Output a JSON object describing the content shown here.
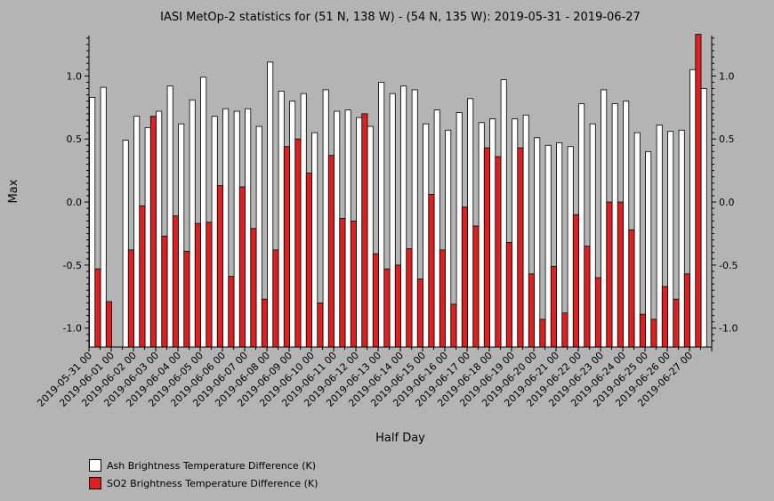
{
  "chart_data": {
    "type": "bar",
    "title": "IASI MetOp-2 statistics for (51 N, 138 W) - (54 N, 135 W): 2019-05-31 - 2019-06-27",
    "xlabel": "Half Day",
    "ylabel": "Max",
    "ylim": [
      -1.15,
      1.32
    ],
    "yticks": [
      -1.0,
      -0.5,
      0.0,
      0.5,
      1.0
    ],
    "ytick_labels": [
      "-1.0",
      "-0.5",
      "0.0",
      "0.5",
      "1.0"
    ],
    "legend_position": "bottom-left",
    "grid": false,
    "xtick_labels": [
      "2019-05-31 00",
      "2019-06-01 00",
      "2019-06-02 00",
      "2019-06-03 00",
      "2019-06-04 00",
      "2019-06-05 00",
      "2019-06-06 00",
      "2019-06-07 00",
      "2019-06-08 00",
      "2019-06-09 00",
      "2019-06-10 00",
      "2019-06-11 00",
      "2019-06-12 00",
      "2019-06-13 00",
      "2019-06-14 00",
      "2019-06-15 00",
      "2019-06-16 00",
      "2019-06-17 00",
      "2019-06-18 00",
      "2019-06-19 00",
      "2019-06-20 00",
      "2019-06-21 00",
      "2019-06-22 00",
      "2019-06-23 00",
      "2019-06-24 00",
      "2019-06-25 00",
      "2019-06-26 00",
      "2019-06-27 00"
    ],
    "series": [
      {
        "name": "Ash Brightness Temperature Difference (K)",
        "color": "#ffffff",
        "values": [
          0.83,
          0.91,
          null,
          0.49,
          0.68,
          0.59,
          0.72,
          0.92,
          0.62,
          0.81,
          0.99,
          0.68,
          0.74,
          0.72,
          0.74,
          0.6,
          1.11,
          0.88,
          0.8,
          0.86,
          0.55,
          0.89,
          0.72,
          0.73,
          0.67,
          0.6,
          0.95,
          0.86,
          0.92,
          0.89,
          0.62,
          0.73,
          0.57,
          0.71,
          0.82,
          0.63,
          0.66,
          0.97,
          0.66,
          0.69,
          0.51,
          0.45,
          0.47,
          0.44,
          0.78,
          0.62,
          0.89,
          0.78,
          0.8,
          0.55,
          0.4,
          0.61,
          0.56,
          0.57,
          1.05,
          0.9
        ]
      },
      {
        "name": "SO2 Brightness Temperature Difference (K)",
        "color": "#e02020",
        "values": [
          -0.53,
          -0.79,
          null,
          -0.38,
          -0.03,
          0.68,
          -0.27,
          -0.11,
          -0.39,
          -0.17,
          -0.16,
          0.13,
          -0.59,
          0.12,
          -0.21,
          -0.77,
          -0.38,
          0.44,
          0.5,
          0.23,
          -0.8,
          0.37,
          -0.13,
          -0.15,
          0.7,
          -0.41,
          -0.53,
          -0.5,
          -0.37,
          -0.61,
          0.06,
          -0.38,
          -0.81,
          -0.04,
          -0.19,
          0.43,
          0.36,
          -0.32,
          0.43,
          -0.57,
          -0.93,
          -0.51,
          -0.88,
          -0.1,
          -0.35,
          -0.6,
          0.0,
          0.0,
          -0.22,
          -0.89,
          -0.93,
          -0.67,
          -0.77,
          -0.57,
          1.33,
          null
        ]
      }
    ]
  }
}
